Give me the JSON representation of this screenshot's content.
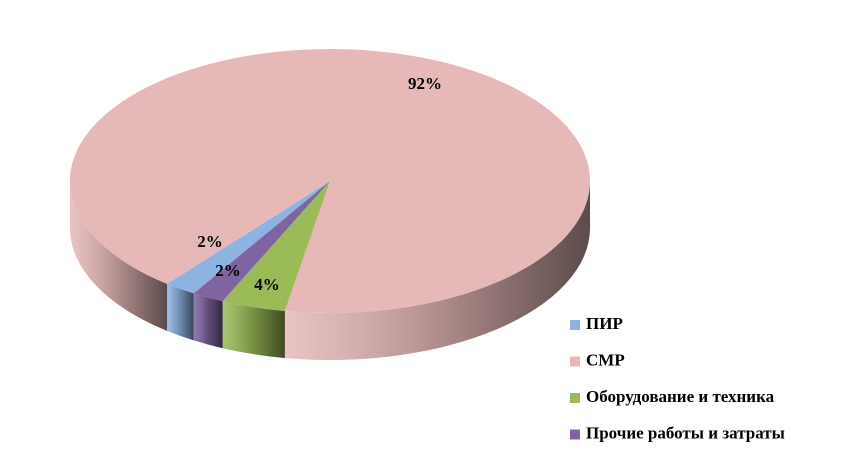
{
  "chart_data": {
    "type": "pie",
    "categories": [
      "ПИР",
      "СМР",
      "Оборудование и техника",
      "Прочие работы и затраты"
    ],
    "values": [
      2,
      92,
      4,
      2
    ],
    "value_labels": [
      "2%",
      "92%",
      "4%",
      "2%"
    ],
    "colors": [
      "#8db3e2",
      "#e6b9b8",
      "#9bbb59",
      "#8064a2"
    ],
    "legend": "right"
  }
}
